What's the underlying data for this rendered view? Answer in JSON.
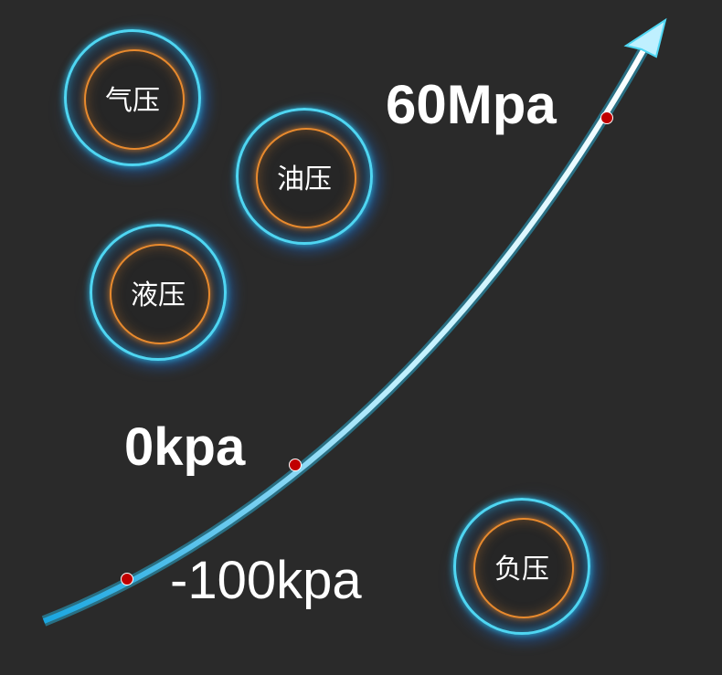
{
  "badges": [
    {
      "label": "气压"
    },
    {
      "label": "油压"
    },
    {
      "label": "液压"
    },
    {
      "label": "负压"
    }
  ],
  "values": {
    "high": "60Mpa",
    "zero": "0kpa",
    "low": "-100kpa"
  },
  "colors": {
    "background": "#2a2a2a",
    "ring_outer": "#4fd6f2",
    "ring_inner": "#e88a2e",
    "marker": "#c00000"
  }
}
